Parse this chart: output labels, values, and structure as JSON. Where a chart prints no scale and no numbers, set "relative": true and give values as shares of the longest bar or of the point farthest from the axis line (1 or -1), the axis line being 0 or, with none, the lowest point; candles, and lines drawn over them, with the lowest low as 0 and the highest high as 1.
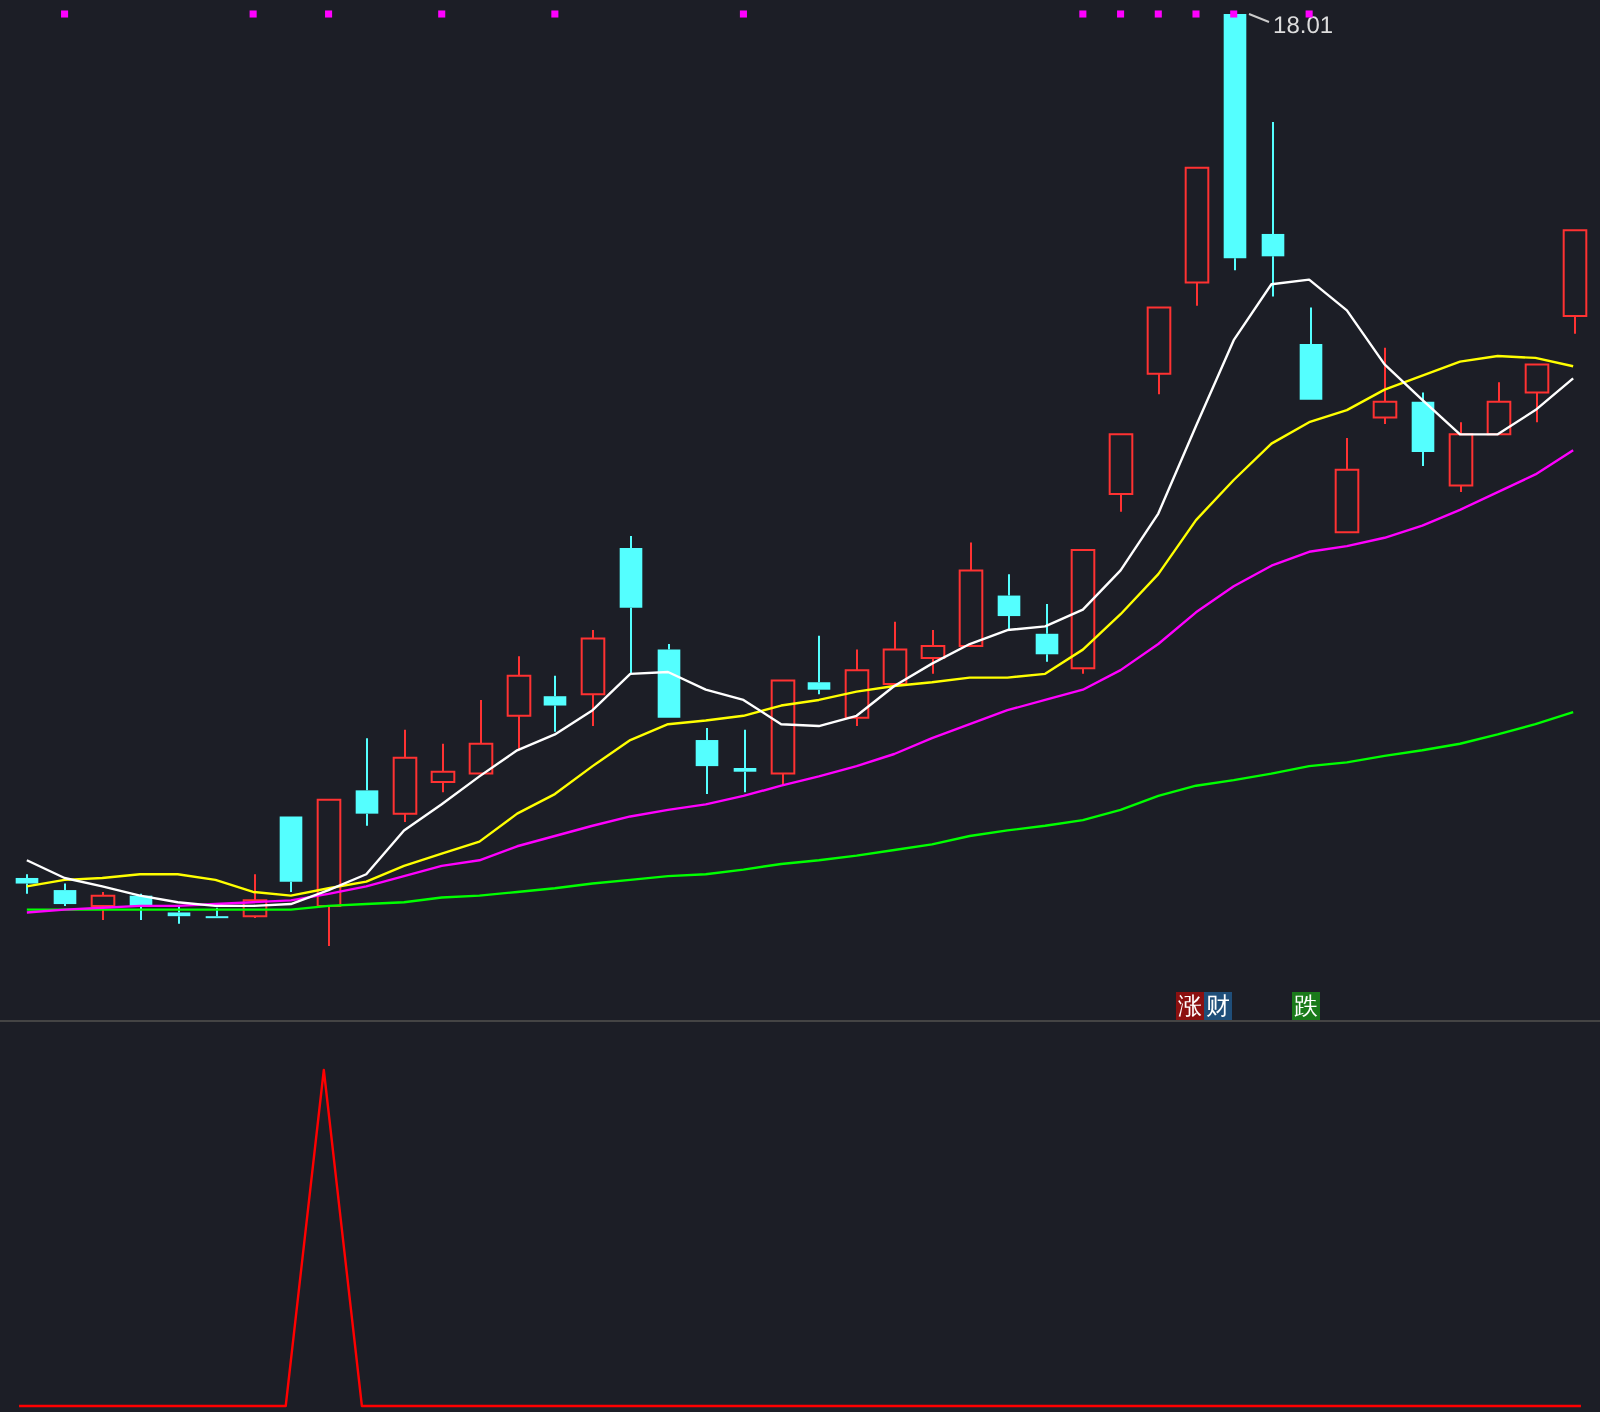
{
  "chart_data": [
    {
      "type": "candlestick",
      "relative": true,
      "marker": "none",
      "line_style": "solid",
      "legend": false,
      "categories": [
        null,
        null,
        null,
        null,
        null,
        null,
        null,
        null,
        null,
        null,
        null,
        null,
        null,
        null,
        null,
        null,
        null,
        null,
        null,
        null,
        null,
        null,
        null,
        null,
        null,
        null,
        null,
        null,
        null,
        null,
        null,
        null,
        null,
        null,
        null,
        null,
        null,
        null,
        null,
        null,
        null,
        null
      ],
      "ohlc": [
        [
          0.073,
          0.077,
          0.056,
          0.067
        ],
        [
          0.06,
          0.067,
          0.043,
          0.045
        ],
        [
          0.043,
          0.058,
          0.028,
          0.054
        ],
        [
          0.054,
          0.056,
          0.028,
          0.043
        ],
        [
          0.036,
          0.043,
          0.024,
          0.032
        ],
        [
          0.032,
          0.041,
          0.03,
          0.03
        ],
        [
          0.032,
          0.077,
          0.03,
          0.049
        ],
        [
          0.139,
          0.139,
          0.058,
          0.069
        ],
        [
          0.043,
          0.157,
          0,
          0.157
        ],
        [
          0.167,
          0.223,
          0.129,
          0.142
        ],
        [
          0.142,
          0.232,
          0.133,
          0.202
        ],
        [
          0.176,
          0.217,
          0.165,
          0.187
        ],
        [
          0.185,
          0.264,
          0.185,
          0.217
        ],
        [
          0.247,
          0.311,
          0.21,
          0.29
        ],
        [
          0.268,
          0.29,
          0.23,
          0.258
        ],
        [
          0.27,
          0.339,
          0.236,
          0.33
        ],
        [
          0.427,
          0.44,
          0.292,
          0.363
        ],
        [
          0.318,
          0.324,
          0.245,
          0.245
        ],
        [
          0.221,
          0.234,
          0.163,
          0.193
        ],
        [
          0.191,
          0.232,
          0.165,
          0.187
        ],
        [
          0.185,
          0.285,
          0.172,
          0.285
        ],
        [
          0.283,
          0.333,
          0.27,
          0.275
        ],
        [
          0.245,
          0.318,
          0.236,
          0.296
        ],
        [
          0.281,
          0.348,
          0.281,
          0.318
        ],
        [
          0.309,
          0.339,
          0.292,
          0.322
        ],
        [
          0.322,
          0.433,
          0.322,
          0.403
        ],
        [
          0.376,
          0.399,
          0.339,
          0.354
        ],
        [
          0.335,
          0.367,
          0.305,
          0.313
        ],
        [
          0.298,
          0.425,
          0.292,
          0.425
        ],
        [
          0.485,
          0.549,
          0.466,
          0.549
        ],
        [
          0.614,
          0.685,
          0.592,
          0.685
        ],
        [
          0.712,
          0.835,
          0.687,
          0.835
        ],
        [
          1,
          1,
          0.725,
          0.738
        ],
        [
          0.764,
          0.884,
          0.697,
          0.74
        ],
        [
          0.646,
          0.685,
          0.586,
          0.586
        ],
        [
          0.444,
          0.545,
          0.444,
          0.511
        ],
        [
          0.567,
          0.642,
          0.56,
          0.584
        ],
        [
          0.584,
          0.594,
          0.515,
          0.53
        ],
        [
          0.494,
          0.562,
          0.487,
          0.549
        ],
        [
          0.549,
          0.605,
          0.549,
          0.584
        ],
        [
          0.594,
          0.624,
          0.562,
          0.624
        ],
        [
          0.676,
          0.768,
          0.657,
          0.768
        ]
      ],
      "series": [
        {
          "type": "line",
          "color": "#ffffff",
          "values": [
            0.092,
            0.073,
            0.064,
            0.054,
            0.047,
            0.043,
            0.043,
            0.045,
            0.06,
            0.077,
            0.124,
            0.152,
            0.182,
            0.21,
            0.227,
            0.253,
            0.292,
            0.294,
            0.275,
            0.264,
            0.238,
            0.236,
            0.247,
            0.279,
            0.303,
            0.324,
            0.339,
            0.343,
            0.361,
            0.403,
            0.464,
            0.558,
            0.65,
            0.71,
            0.715,
            0.682,
            0.624,
            0.586,
            0.549,
            0.549,
            0.575,
            0.609
          ]
        },
        {
          "type": "line",
          "color": "#ffff00",
          "values": [
            0.064,
            0.071,
            0.073,
            0.077,
            0.077,
            0.071,
            0.058,
            0.054,
            0.062,
            0.069,
            0.086,
            0.099,
            0.112,
            0.142,
            0.163,
            0.193,
            0.221,
            0.238,
            0.242,
            0.247,
            0.258,
            0.264,
            0.273,
            0.279,
            0.283,
            0.288,
            0.288,
            0.292,
            0.318,
            0.356,
            0.399,
            0.457,
            0.5,
            0.539,
            0.562,
            0.575,
            0.597,
            0.612,
            0.627,
            0.633,
            0.631,
            0.622
          ]
        },
        {
          "type": "line",
          "color": "#ff00ff",
          "values": [
            0.036,
            0.039,
            0.041,
            0.043,
            0.043,
            0.045,
            0.047,
            0.049,
            0.056,
            0.064,
            0.075,
            0.086,
            0.092,
            0.107,
            0.118,
            0.129,
            0.139,
            0.146,
            0.152,
            0.161,
            0.172,
            0.182,
            0.193,
            0.206,
            0.223,
            0.238,
            0.253,
            0.264,
            0.275,
            0.296,
            0.324,
            0.358,
            0.386,
            0.408,
            0.423,
            0.429,
            0.438,
            0.451,
            0.468,
            0.487,
            0.506,
            0.532
          ]
        },
        {
          "type": "line",
          "color": "#00ff00",
          "values": [
            0.039,
            0.039,
            0.039,
            0.039,
            0.039,
            0.039,
            0.039,
            0.039,
            0.043,
            0.045,
            0.047,
            0.052,
            0.054,
            0.058,
            0.062,
            0.067,
            0.071,
            0.075,
            0.077,
            0.082,
            0.088,
            0.092,
            0.097,
            0.103,
            0.109,
            0.118,
            0.124,
            0.129,
            0.135,
            0.146,
            0.161,
            0.172,
            0.178,
            0.185,
            0.193,
            0.197,
            0.204,
            0.21,
            0.217,
            0.227,
            0.238,
            0.251
          ]
        },
        {
          "type": "scatter",
          "color": "#ff00ff",
          "marker": "square",
          "values": [
            null,
            1,
            null,
            null,
            null,
            null,
            1,
            null,
            1,
            null,
            null,
            1,
            null,
            null,
            1,
            null,
            null,
            null,
            null,
            1,
            null,
            null,
            null,
            null,
            null,
            null,
            null,
            null,
            1,
            1,
            1,
            1,
            1,
            null,
            1,
            null,
            null,
            null,
            null,
            null,
            null,
            null
          ]
        }
      ],
      "annotations": [
        {
          "text": "18.01",
          "y": 1
        },
        "涨",
        "财",
        "跌"
      ]
    },
    {
      "type": "line",
      "relative": true,
      "marker": "none",
      "legend": false,
      "categories": [
        null,
        null,
        null,
        null,
        null,
        null,
        null,
        null,
        null,
        null,
        null,
        null,
        null,
        null,
        null,
        null,
        null,
        null,
        null,
        null,
        null,
        null,
        null,
        null,
        null,
        null,
        null,
        null,
        null,
        null,
        null,
        null,
        null,
        null,
        null,
        null,
        null,
        null,
        null,
        null,
        null,
        null
      ],
      "series": [
        {
          "color": "#ff0000",
          "values": [
            0,
            0,
            0,
            0,
            0,
            0,
            0,
            0,
            1,
            0,
            0,
            0,
            0,
            0,
            0,
            0,
            0,
            0,
            0,
            0,
            0,
            0,
            0,
            0,
            0,
            0,
            0,
            0,
            0,
            0,
            0,
            0,
            0,
            0,
            0,
            0,
            0,
            0,
            0,
            0,
            0,
            0
          ]
        }
      ]
    }
  ]
}
